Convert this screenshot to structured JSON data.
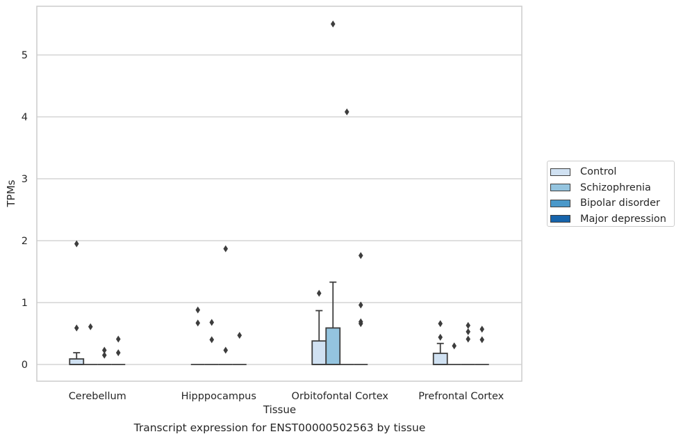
{
  "chart_data": {
    "type": "box",
    "xlabel": "Tissue",
    "ylabel": "TPMs",
    "caption": "Transcript expression for ENST00000502563 by tissue",
    "categories": [
      "Cerebellum",
      "Hipppocampus",
      "Orbitofontal Cortex",
      "Prefrontal Cortex"
    ],
    "ylim": [
      -0.27,
      5.8
    ],
    "yticks": [
      0,
      1,
      2,
      3,
      4,
      5
    ],
    "grid": "horizontal",
    "legend_position": "right",
    "series": [
      {
        "name": "Control",
        "color": "#d0e1f2",
        "boxes": [
          {
            "q1": 0,
            "median": 0,
            "q3": 0.09,
            "whisker_low": 0,
            "whisker_high": 0.19,
            "outliers": [
              1.95,
              0.59
            ]
          },
          {
            "q1": 0,
            "median": 0,
            "q3": 0,
            "whisker_low": 0,
            "whisker_high": 0,
            "outliers": [
              0.88,
              0.67
            ]
          },
          {
            "q1": 0,
            "median": 0,
            "q3": 0.38,
            "whisker_low": 0,
            "whisker_high": 0.87,
            "outliers": [
              1.15
            ]
          },
          {
            "q1": 0,
            "median": 0,
            "q3": 0.18,
            "whisker_low": 0,
            "whisker_high": 0.34,
            "outliers": [
              0.66,
              0.44
            ]
          }
        ]
      },
      {
        "name": "Schizophrenia",
        "color": "#94c4df",
        "boxes": [
          {
            "q1": 0,
            "median": 0,
            "q3": 0,
            "whisker_low": 0,
            "whisker_high": 0,
            "outliers": [
              0.61
            ]
          },
          {
            "q1": 0,
            "median": 0,
            "q3": 0,
            "whisker_low": 0,
            "whisker_high": 0,
            "outliers": [
              0.68,
              0.4
            ]
          },
          {
            "q1": 0,
            "median": 0,
            "q3": 0.59,
            "whisker_low": 0,
            "whisker_high": 1.33,
            "outliers": [
              5.5
            ]
          },
          {
            "q1": 0,
            "median": 0,
            "q3": 0,
            "whisker_low": 0,
            "whisker_high": 0,
            "outliers": [
              0.3
            ]
          }
        ]
      },
      {
        "name": "Bipolar disorder",
        "color": "#4a98c9",
        "boxes": [
          {
            "q1": 0,
            "median": 0,
            "q3": 0,
            "whisker_low": 0,
            "whisker_high": 0,
            "outliers": [
              0.23,
              0.15
            ]
          },
          {
            "q1": 0,
            "median": 0,
            "q3": 0,
            "whisker_low": 0,
            "whisker_high": 0,
            "outliers": [
              1.87,
              0.23
            ]
          },
          {
            "q1": 0,
            "median": 0,
            "q3": 0,
            "whisker_low": 0,
            "whisker_high": 0,
            "outliers": [
              4.08
            ]
          },
          {
            "q1": 0,
            "median": 0,
            "q3": 0,
            "whisker_low": 0,
            "whisker_high": 0,
            "outliers": [
              0.63,
              0.53,
              0.41
            ]
          }
        ]
      },
      {
        "name": "Major depression",
        "color": "#1764ab",
        "boxes": [
          {
            "q1": 0,
            "median": 0,
            "q3": 0,
            "whisker_low": 0,
            "whisker_high": 0,
            "outliers": [
              0.41,
              0.19
            ]
          },
          {
            "q1": 0,
            "median": 0,
            "q3": 0,
            "whisker_low": 0,
            "whisker_high": 0,
            "outliers": [
              0.47
            ]
          },
          {
            "q1": 0,
            "median": 0,
            "q3": 0,
            "whisker_low": 0,
            "whisker_high": 0,
            "outliers": [
              1.76,
              0.96,
              0.69,
              0.66
            ]
          },
          {
            "q1": 0,
            "median": 0,
            "q3": 0,
            "whisker_low": 0,
            "whisker_high": 0,
            "outliers": [
              0.57,
              0.4
            ]
          }
        ]
      }
    ]
  }
}
